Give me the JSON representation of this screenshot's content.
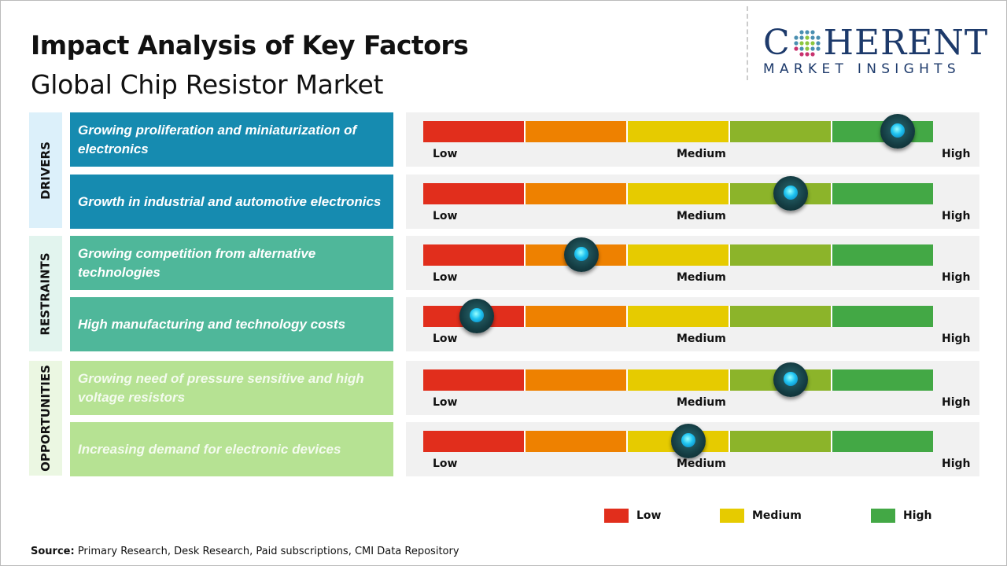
{
  "header": {
    "title": "Impact Analysis of Key Factors",
    "subtitle": "Global Chip Resistor Market"
  },
  "logo": {
    "brand": "COHERENT",
    "tagline": "MARKET INSIGHTS"
  },
  "colors": {
    "low": "#e12e1c",
    "low_mid": "#ee8100",
    "medium": "#e6cb00",
    "mid_high": "#8cb42a",
    "high": "#43a845"
  },
  "chart_data": {
    "type": "gauge-table",
    "scale_labels": [
      "Low",
      "Medium",
      "High"
    ],
    "groups": [
      {
        "name": "DRIVERS",
        "color": "#168bb0",
        "tab_color": "#dcf0fa",
        "text_color": "#ffffff",
        "factors": [
          {
            "text": "Growing proliferation and miniaturization of electronics",
            "impact": 0.93
          },
          {
            "text": "Growth in industrial and automotive electronics",
            "impact": 0.72
          }
        ]
      },
      {
        "name": "RESTRAINTS",
        "color": "#4fb79a",
        "tab_color": "#e2f4ee",
        "text_color": "#ffffff",
        "factors": [
          {
            "text": "Growing competition from alternative technologies",
            "impact": 0.31
          },
          {
            "text": "High manufacturing and technology costs",
            "impact": 0.105
          }
        ]
      },
      {
        "name": "OPPORTUNITIES",
        "color": "#b6e293",
        "tab_color": "#ebf7e2",
        "text_color": "#f4fbef",
        "factors": [
          {
            "text": "Growing need of pressure sensitive and high voltage resistors",
            "impact": 0.72
          },
          {
            "text": "Increasing demand for electronic devices",
            "impact": 0.52
          }
        ]
      }
    ],
    "legend": [
      {
        "label": "Low",
        "color": "#e12e1c"
      },
      {
        "label": "Medium",
        "color": "#e6cb00"
      },
      {
        "label": "High",
        "color": "#43a845"
      }
    ]
  },
  "source": {
    "label": "Source:",
    "text": " Primary Research, Desk Research, Paid subscriptions, CMI Data Repository"
  }
}
